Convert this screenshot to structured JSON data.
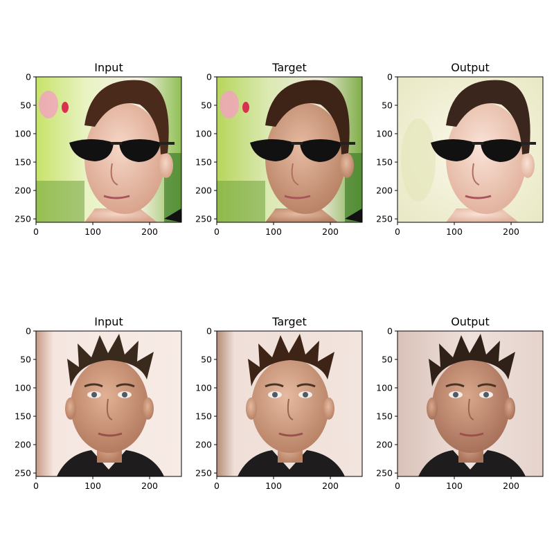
{
  "figure": {
    "rows": [
      {
        "panels": [
          {
            "title": "Input",
            "tone": "warm-bright",
            "subject": "man-with-sunglasses"
          },
          {
            "title": "Target",
            "tone": "natural",
            "subject": "man-with-sunglasses"
          },
          {
            "title": "Output",
            "tone": "faded",
            "subject": "man-with-sunglasses"
          }
        ]
      },
      {
        "panels": [
          {
            "title": "Input",
            "tone": "bright",
            "subject": "man-short-hair"
          },
          {
            "title": "Target",
            "tone": "natural",
            "subject": "man-short-hair"
          },
          {
            "title": "Output",
            "tone": "smooth",
            "subject": "man-short-hair"
          }
        ]
      }
    ],
    "axes": {
      "x_ticks": [
        "0",
        "100",
        "200"
      ],
      "y_ticks": [
        "0",
        "50",
        "100",
        "150",
        "200",
        "250"
      ],
      "x_values": [
        0,
        100,
        200
      ],
      "y_values": [
        0,
        50,
        100,
        150,
        200,
        250
      ],
      "extent": [
        0,
        256
      ]
    },
    "colors": {
      "frame": "#000000",
      "background": "#ffffff"
    }
  }
}
